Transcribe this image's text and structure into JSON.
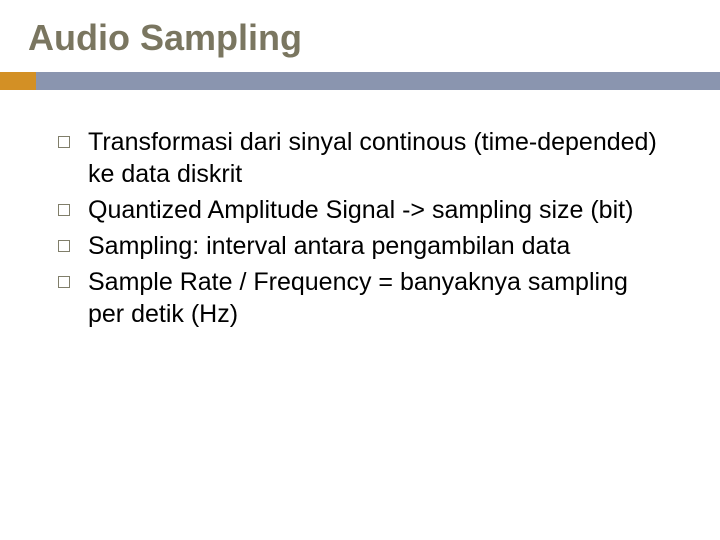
{
  "title": "Audio Sampling",
  "accent_color": "#d39025",
  "bar_color": "#8a95af",
  "title_color": "#7a7660",
  "bullet_border_color": "#807e6a",
  "text_color": "#000000",
  "title_fontsize": 36,
  "body_fontsize": 25,
  "bullets": [
    {
      "text": "Transformasi dari sinyal continous (time-depended) ke data diskrit"
    },
    {
      "text": " Quantized Amplitude Signal -> sampling size (bit)"
    },
    {
      "text": " Sampling: interval antara pengambilan data"
    },
    {
      "text": " Sample Rate / Frequency = banyaknya sampling per detik (Hz)"
    }
  ]
}
